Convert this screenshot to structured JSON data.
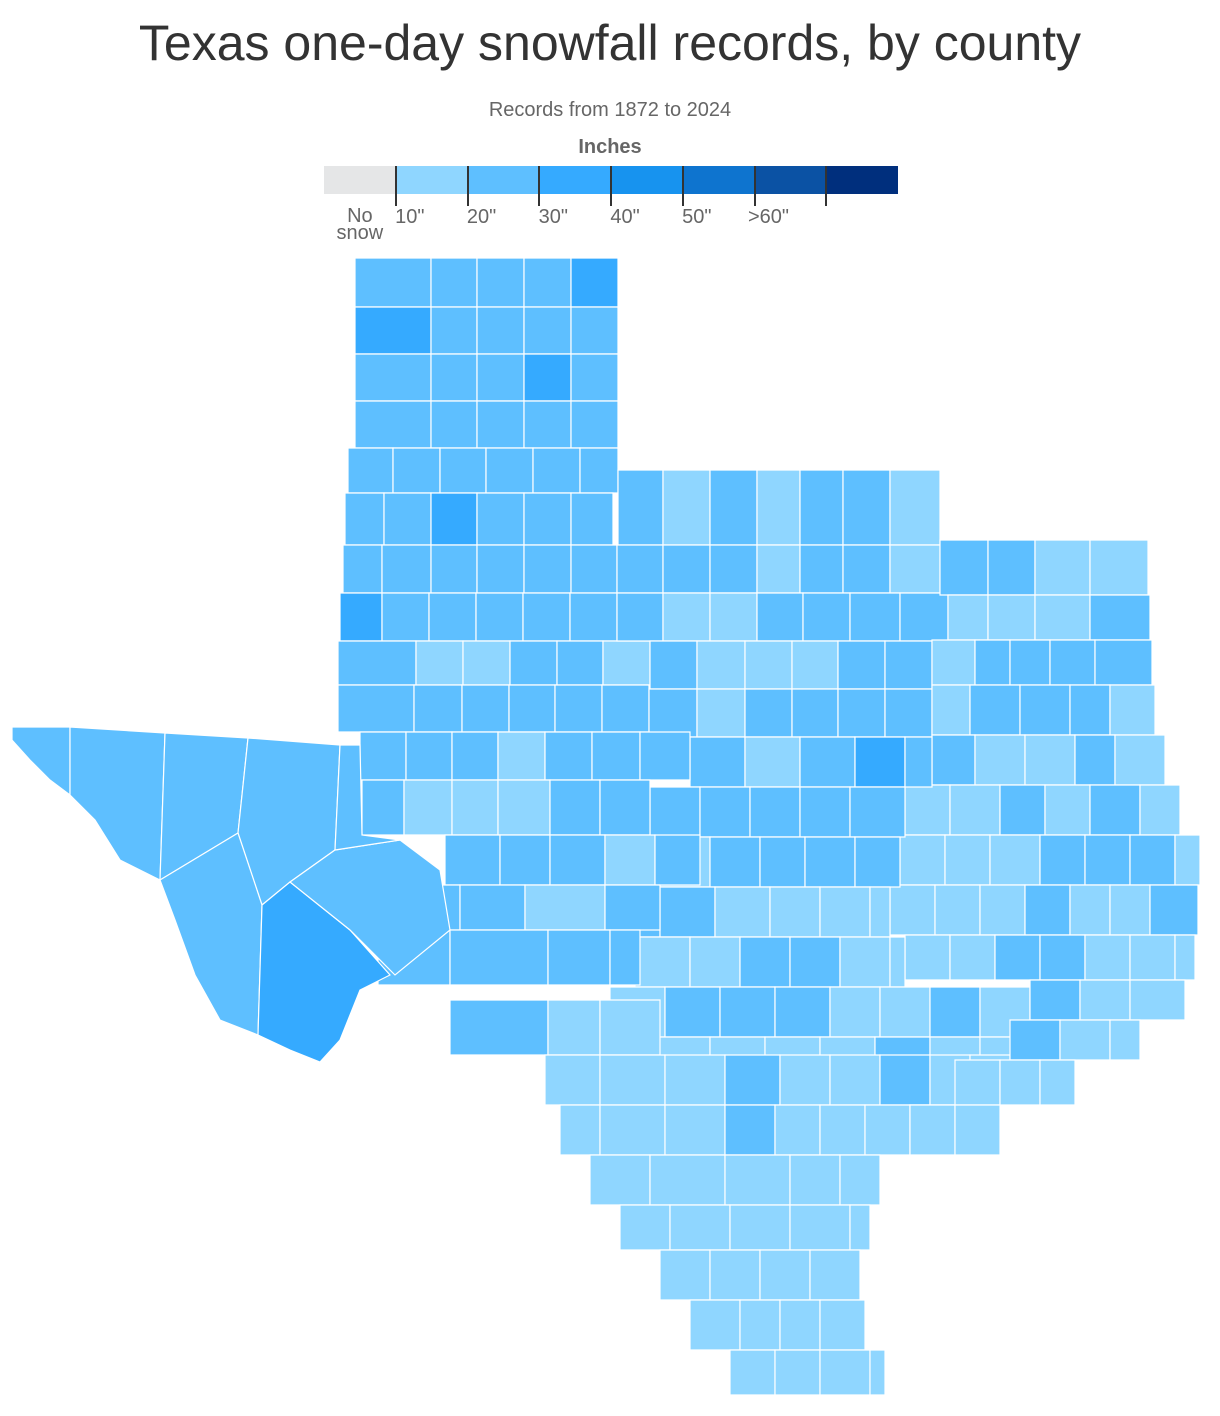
{
  "chart": {
    "title": "Texas one-day snowfall records, by county",
    "subtitle": "Records from 1872 to 2024",
    "legend_title": "Inches",
    "legend": {
      "colors": [
        "#e5e6e7",
        "#8fd6ff",
        "#5ebfff",
        "#35aaff",
        "#1793ef",
        "#0e74cf",
        "#0b52a4",
        "#002f7d"
      ],
      "labels": [
        "No snow",
        "10\"",
        "20\"",
        "30\"",
        "40\"",
        "50\"",
        ">60\""
      ]
    }
  },
  "colors": {
    "border": "#ffffff",
    "text": "#333333",
    "muted": "#666666"
  }
}
